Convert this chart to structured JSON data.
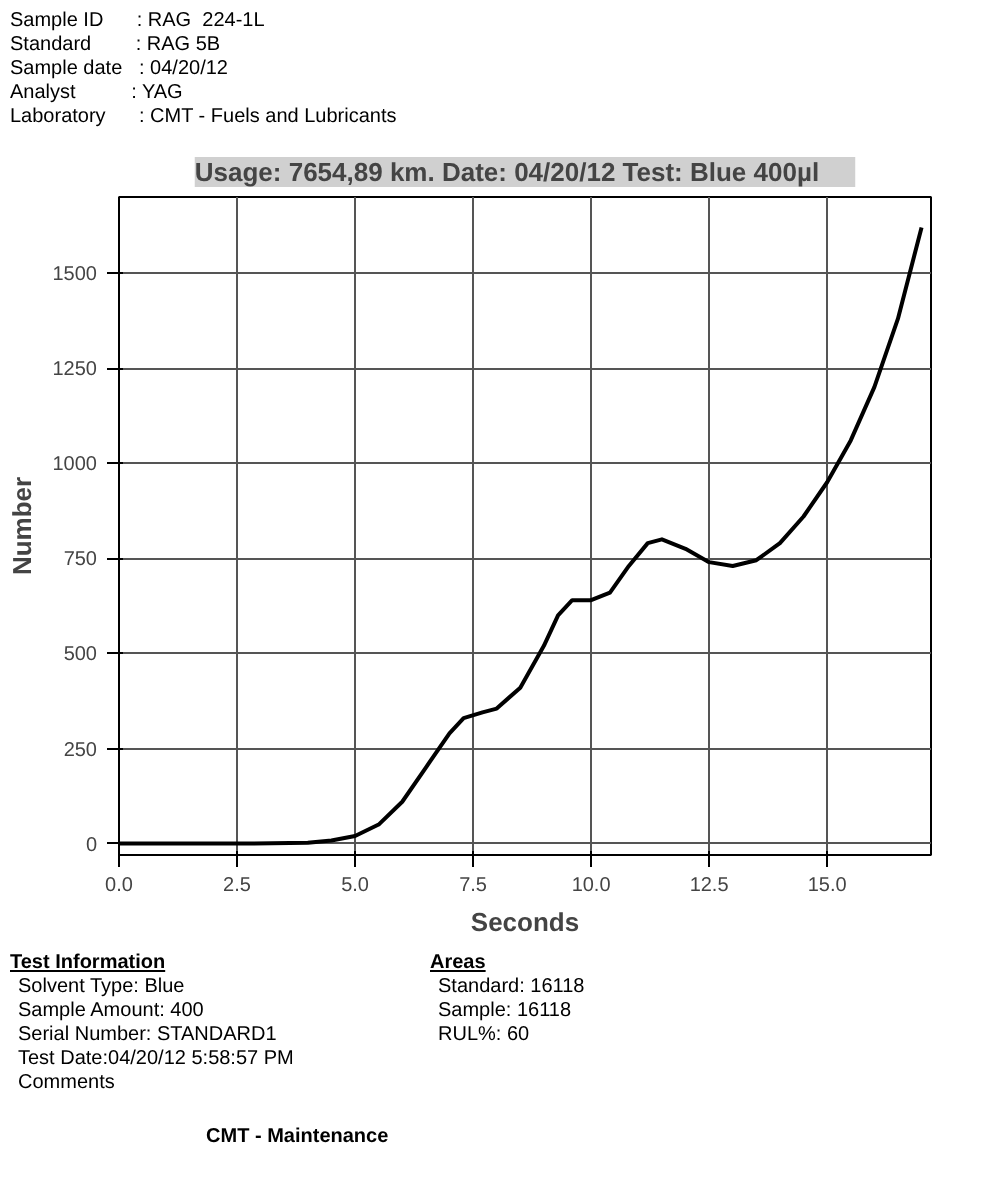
{
  "chart_data": {
    "type": "line",
    "title": "Usage: 7654,89 km.  Date: 04/20/12     Test: Blue 400µl",
    "xlabel": "Seconds",
    "ylabel": "Number",
    "x": [
      0,
      2.5,
      4,
      4.5,
      5,
      5.5,
      6,
      6.5,
      7,
      7.3,
      7.7,
      8,
      8.5,
      9,
      9.3,
      9.6,
      10,
      10.4,
      10.8,
      11.2,
      11.5,
      12,
      12.5,
      13,
      13.5,
      14,
      14.5,
      15,
      15.5,
      16,
      16.5,
      17
    ],
    "series": [
      {
        "color": "#000000",
        "values": [
          0,
          0,
          2,
          8,
          20,
          50,
          110,
          200,
          290,
          330,
          345,
          355,
          410,
          520,
          600,
          640,
          640,
          660,
          730,
          790,
          800,
          775,
          740,
          730,
          745,
          790,
          860,
          950,
          1060,
          1200,
          1380,
          1620
        ]
      }
    ],
    "xlim": [
      0,
      17.2
    ],
    "ylim": [
      -30,
      1700
    ],
    "xticks": [
      {
        "value": 0,
        "label": "0.0"
      },
      {
        "value": 2.5,
        "label": "2.5"
      },
      {
        "value": 5,
        "label": "5.0"
      },
      {
        "value": 7.5,
        "label": "7.5"
      },
      {
        "value": 10,
        "label": "10.0"
      },
      {
        "value": 12.5,
        "label": "12.5"
      },
      {
        "value": 15,
        "label": "15.0"
      }
    ],
    "yticks": [
      0,
      250,
      500,
      750,
      1000,
      1250,
      1500
    ],
    "grid": true,
    "marker": "none",
    "line_style": "solid",
    "annotations": [
      "Sample ID      : RAG  224-1L",
      "Standard        : RAG 5B",
      "Sample date   : 04/20/12",
      "Analyst          : YAG",
      "Laboratory      : CMT - Fuels and Lubricants",
      "Test Information",
      "Solvent Type: Blue",
      "Sample Amount: 400",
      "Serial Number: STANDARD1",
      "Test Date:04/20/12  5:58:57 PM",
      "Comments",
      "Areas",
      "Standard:  16118",
      "Sample:  16118",
      "RUL%:  60",
      "CMT - Maintenance"
    ]
  }
}
